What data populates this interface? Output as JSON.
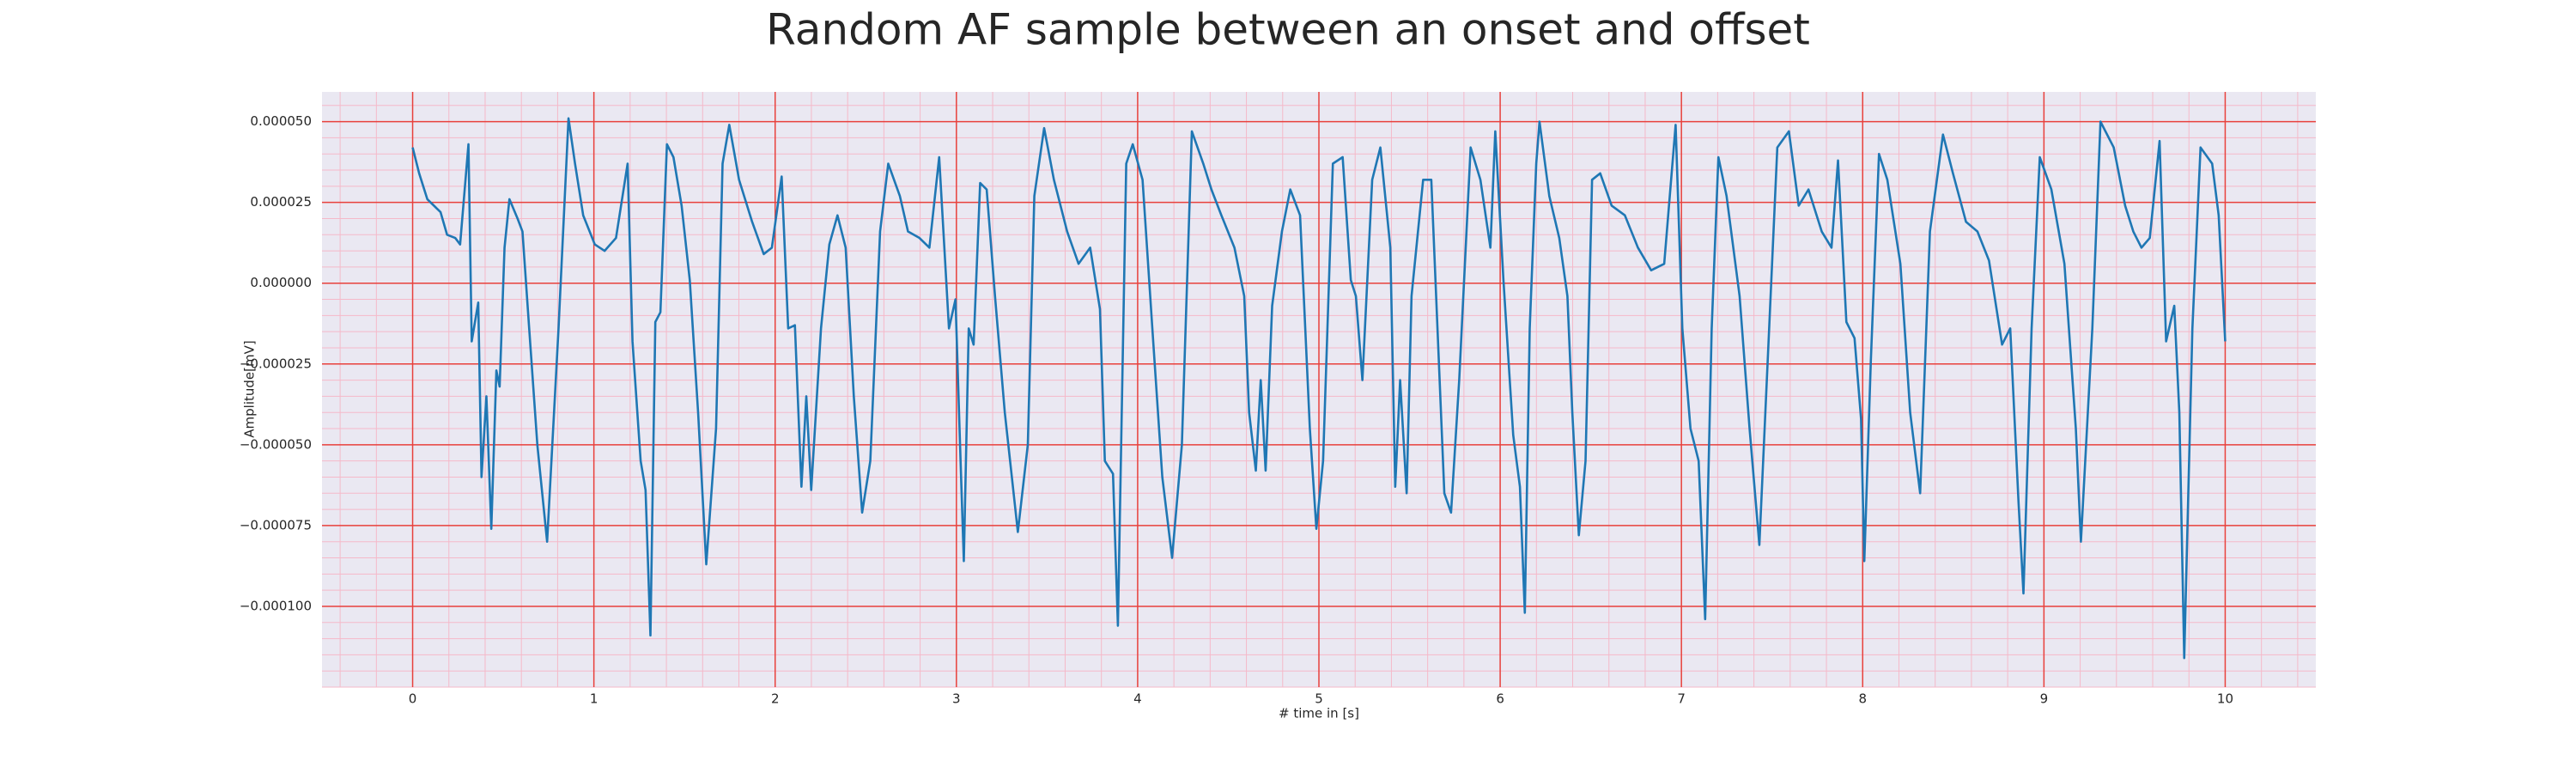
{
  "chart_data": {
    "type": "line",
    "title": "Random AF sample between an onset and offset",
    "xlabel": "# time in [s]",
    "ylabel": "Amplitude[mV]",
    "xlim": [
      -0.5,
      10.5
    ],
    "ylim": [
      -0.000125,
      5.92e-05
    ],
    "xticks": [
      0,
      1,
      2,
      3,
      4,
      5,
      6,
      7,
      8,
      9,
      10
    ],
    "yticks": [
      {
        "value": -0.0001,
        "label": "−0.000100"
      },
      {
        "value": -7.5e-05,
        "label": "−0.000075"
      },
      {
        "value": -5e-05,
        "label": "−0.000050"
      },
      {
        "value": -2.5e-05,
        "label": "−0.000025"
      },
      {
        "value": 0,
        "label": "0.000000"
      },
      {
        "value": 2.5e-05,
        "label": "0.000025"
      },
      {
        "value": 5e-05,
        "label": "0.000050"
      }
    ],
    "grid": true,
    "grid_color": "#e8413c",
    "minor_grid": {
      "color": "#f5b9c9",
      "x_step": 0.2,
      "y_step": 5e-06
    },
    "background": "#eae8f2",
    "series": [
      {
        "color": "#1f77b4",
        "x": [
          0,
          0.036,
          0.081,
          0.154,
          0.19,
          0.235,
          0.262,
          0.308,
          0.326,
          0.362,
          0.38,
          0.407,
          0.434,
          0.462,
          0.48,
          0.507,
          0.534,
          0.579,
          0.606,
          0.643,
          0.688,
          0.742,
          0.805,
          0.86,
          0.896,
          0.941,
          1.005,
          1.059,
          1.122,
          1.186,
          1.213,
          1.258,
          1.285,
          1.312,
          1.339,
          1.367,
          1.403,
          1.439,
          1.484,
          1.529,
          1.575,
          1.62,
          1.674,
          1.71,
          1.747,
          1.801,
          1.873,
          1.937,
          1.982,
          2.036,
          2.072,
          2.109,
          2.145,
          2.172,
          2.199,
          2.253,
          2.299,
          2.344,
          2.389,
          2.434,
          2.48,
          2.525,
          2.579,
          2.624,
          2.688,
          2.733,
          2.796,
          2.851,
          2.905,
          2.959,
          2.995,
          3.023,
          3.041,
          3.068,
          3.095,
          3.131,
          3.167,
          3.213,
          3.267,
          3.339,
          3.394,
          3.43,
          3.484,
          3.538,
          3.611,
          3.674,
          3.738,
          3.792,
          3.819,
          3.864,
          3.891,
          3.937,
          3.973,
          4.027,
          4.081,
          4.136,
          4.19,
          4.244,
          4.299,
          4.362,
          4.407,
          4.462,
          4.534,
          4.588,
          4.615,
          4.652,
          4.679,
          4.706,
          4.742,
          4.796,
          4.842,
          4.896,
          4.95,
          4.986,
          5.023,
          5.077,
          5.131,
          5.176,
          5.204,
          5.24,
          5.294,
          5.339,
          5.394,
          5.421,
          5.448,
          5.484,
          5.511,
          5.575,
          5.62,
          5.692,
          5.729,
          5.774,
          5.837,
          5.891,
          5.946,
          5.973,
          6.018,
          6.072,
          6.109,
          6.136,
          6.163,
          6.199,
          6.217,
          6.271,
          6.326,
          6.371,
          6.398,
          6.434,
          6.471,
          6.507,
          6.552,
          6.615,
          6.688,
          6.76,
          6.833,
          6.905,
          6.968,
          7.005,
          7.05,
          7.095,
          7.131,
          7.167,
          7.204,
          7.249,
          7.321,
          7.376,
          7.43,
          7.484,
          7.529,
          7.593,
          7.647,
          7.701,
          7.774,
          7.828,
          7.864,
          7.91,
          7.955,
          7.991,
          8.009,
          8.045,
          8.09,
          8.136,
          8.208,
          8.262,
          8.317,
          8.371,
          8.443,
          8.498,
          8.57,
          8.633,
          8.697,
          8.769,
          8.814,
          8.86,
          8.887,
          8.932,
          8.977,
          9.041,
          9.113,
          9.176,
          9.204,
          9.267,
          9.312,
          9.385,
          9.448,
          9.493,
          9.538,
          9.584,
          9.638,
          9.674,
          9.719,
          9.747,
          9.774,
          9.819,
          9.864,
          9.928,
          9.964,
          10.0
        ],
        "values": [
          4.2e-05,
          3.4e-05,
          2.6e-05,
          2.2e-05,
          1.5e-05,
          1.4e-05,
          1.2e-05,
          4.3e-05,
          -1.8e-05,
          -6e-06,
          -6e-05,
          -3.5e-05,
          -7.6e-05,
          -2.7e-05,
          -3.2e-05,
          1.1e-05,
          2.6e-05,
          2e-05,
          1.6e-05,
          -1.4e-05,
          -5e-05,
          -8e-05,
          -1.4e-05,
          5.1e-05,
          3.7e-05,
          2.1e-05,
          1.2e-05,
          1e-05,
          1.4e-05,
          3.7e-05,
          -1.8e-05,
          -5.5e-05,
          -6.4e-05,
          -0.000109,
          -1.2e-05,
          -9e-06,
          4.3e-05,
          3.9e-05,
          2.4e-05,
          1e-06,
          -4e-05,
          -8.7e-05,
          -4.5e-05,
          3.7e-05,
          4.9e-05,
          3.2e-05,
          1.9e-05,
          9e-06,
          1.1e-05,
          3.3e-05,
          -1.4e-05,
          -1.3e-05,
          -6.3e-05,
          -3.5e-05,
          -6.4e-05,
          -1.4e-05,
          1.2e-05,
          2.1e-05,
          1.1e-05,
          -3.5e-05,
          -7.1e-05,
          -5.5e-05,
          1.6e-05,
          3.7e-05,
          2.7e-05,
          1.6e-05,
          1.4e-05,
          1.1e-05,
          3.9e-05,
          -1.4e-05,
          -5e-06,
          -5.5e-05,
          -8.6e-05,
          -1.4e-05,
          -1.9e-05,
          3.1e-05,
          2.9e-05,
          -4e-06,
          -4e-05,
          -7.7e-05,
          -5e-05,
          2.7e-05,
          4.8e-05,
          3.2e-05,
          1.6e-05,
          6e-06,
          1.1e-05,
          -8e-06,
          -5.5e-05,
          -5.9e-05,
          -0.000106,
          3.7e-05,
          4.3e-05,
          3.2e-05,
          -1.4e-05,
          -6e-05,
          -8.5e-05,
          -5e-05,
          4.7e-05,
          3.7e-05,
          2.9e-05,
          2.1e-05,
          1.1e-05,
          -4e-06,
          -4e-05,
          -5.8e-05,
          -3e-05,
          -5.8e-05,
          -7e-06,
          1.6e-05,
          2.9e-05,
          2.1e-05,
          -4.5e-05,
          -7.6e-05,
          -5.5e-05,
          3.7e-05,
          3.9e-05,
          1e-06,
          -4e-06,
          -3e-05,
          3.2e-05,
          4.2e-05,
          1.1e-05,
          -6.3e-05,
          -3e-05,
          -6.5e-05,
          -4e-06,
          3.2e-05,
          3.2e-05,
          -6.5e-05,
          -7.1e-05,
          -3e-05,
          4.2e-05,
          3.2e-05,
          1.1e-05,
          4.7e-05,
          1e-06,
          -4.7e-05,
          -6.3e-05,
          -0.000102,
          -1.4e-05,
          3.7e-05,
          5e-05,
          2.7e-05,
          1.4e-05,
          -4e-06,
          -4e-05,
          -7.8e-05,
          -5.5e-05,
          3.2e-05,
          3.4e-05,
          2.4e-05,
          2.1e-05,
          1.1e-05,
          4e-06,
          6e-06,
          4.9e-05,
          -1.4e-05,
          -4.5e-05,
          -5.5e-05,
          -0.000104,
          -1.4e-05,
          3.9e-05,
          2.7e-05,
          -4e-06,
          -4.5e-05,
          -8.1e-05,
          -1.4e-05,
          4.2e-05,
          4.7e-05,
          2.4e-05,
          2.9e-05,
          1.6e-05,
          1.1e-05,
          3.8e-05,
          -1.2e-05,
          -1.7e-05,
          -4.2e-05,
          -8.6e-05,
          -2.4e-05,
          4e-05,
          3.2e-05,
          6e-06,
          -4e-05,
          -6.5e-05,
          1.6e-05,
          4.6e-05,
          3.4e-05,
          1.9e-05,
          1.6e-05,
          7e-06,
          -1.9e-05,
          -1.4e-05,
          -6.8e-05,
          -9.6e-05,
          -1.4e-05,
          3.9e-05,
          2.9e-05,
          6e-06,
          -4.5e-05,
          -8e-05,
          -1.4e-05,
          5e-05,
          4.2e-05,
          2.4e-05,
          1.6e-05,
          1.1e-05,
          1.4e-05,
          4.4e-05,
          -1.8e-05,
          -7e-06,
          -4e-05,
          -0.000116,
          -1.4e-05,
          4.2e-05,
          3.7e-05,
          2.1e-05,
          -1.8e-05
        ]
      }
    ]
  }
}
